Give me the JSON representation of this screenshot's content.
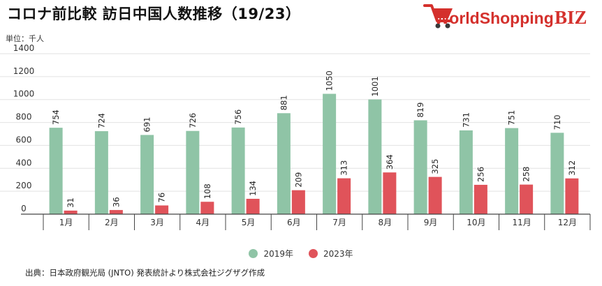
{
  "title": "コロナ前比較 訪日中国人数推移（19/23）",
  "unit_label": "単位：千人",
  "source": "出典：日本政府観光局 (JNTO) 発表統計より株式会社ジグザグ作成",
  "logo": {
    "text_main": "WorldShopping",
    "text_accent": "BIZ",
    "icon_name": "shopping-cart-icon"
  },
  "colors": {
    "series_2019": "#8fc4a6",
    "series_2023": "#e0535a",
    "logo_red": "#d4302c",
    "logo_dark": "#3a3a3a"
  },
  "legend": [
    {
      "label": "2019年",
      "color": "#8fc4a6"
    },
    {
      "label": "2023年",
      "color": "#e0535a"
    }
  ],
  "chart_data": {
    "type": "bar",
    "title": "コロナ前比較 訪日中国人数推移（19/23）",
    "ylabel": "単位：千人",
    "xlabel": "",
    "ylim": [
      0,
      1400
    ],
    "yticks": [
      0,
      200,
      400,
      600,
      800,
      1000,
      1200,
      1400
    ],
    "grid": true,
    "legend_position": "bottom",
    "categories": [
      "1月",
      "2月",
      "3月",
      "4月",
      "5月",
      "6月",
      "7月",
      "8月",
      "9月",
      "10月",
      "11月",
      "12月"
    ],
    "series": [
      {
        "name": "2019年",
        "values": [
          754,
          724,
          691,
          726,
          756,
          881,
          1050,
          1001,
          819,
          731,
          751,
          710
        ]
      },
      {
        "name": "2023年",
        "values": [
          31,
          36,
          76,
          108,
          134,
          209,
          313,
          364,
          325,
          256,
          258,
          312
        ]
      }
    ]
  }
}
